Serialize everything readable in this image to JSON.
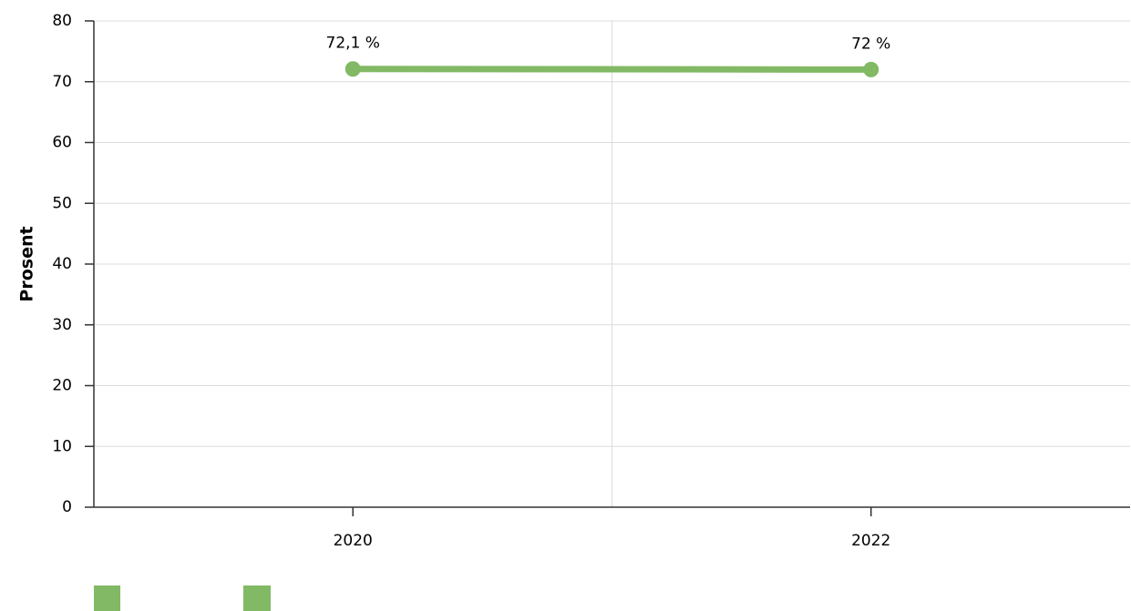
{
  "chart_data": {
    "type": "line",
    "y_label": "Prosent",
    "categories": [
      "2020",
      "2022"
    ],
    "values": [
      72.1,
      72
    ],
    "value_labels": [
      "72,1 %",
      "72 %"
    ],
    "color": "#82b964",
    "ylim": [
      0,
      80
    ],
    "yticks": [
      0,
      10,
      20,
      30,
      40,
      50,
      60,
      70,
      80
    ],
    "grid": true
  }
}
